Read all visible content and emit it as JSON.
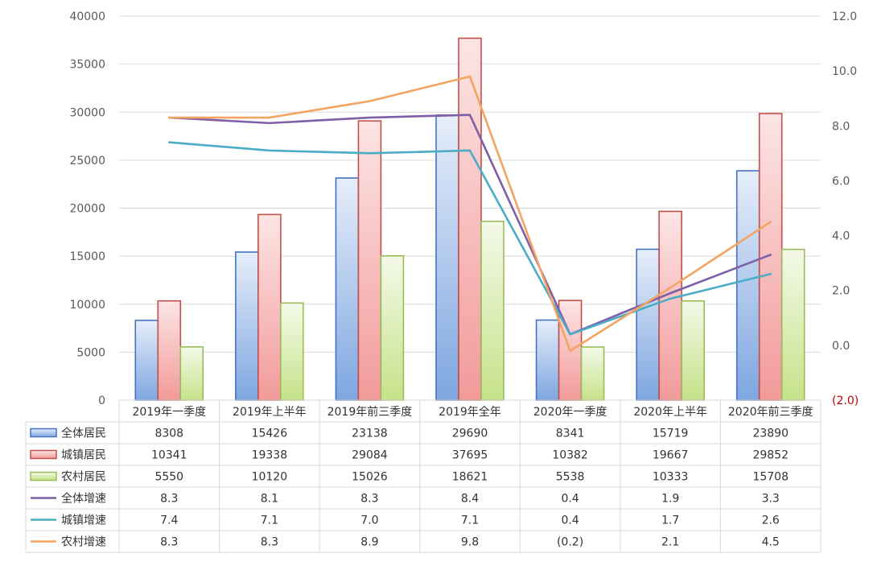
{
  "chart_data": {
    "type": "bar",
    "categories": [
      "2019年一季度",
      "2019年上半年",
      "2019年前三季度",
      "2019年全年",
      "2020年一季度",
      "2020年上半年",
      "2020年前三季度"
    ],
    "y_left": {
      "min": 0,
      "max": 40000,
      "ticks": [
        "0",
        "5000",
        "10000",
        "15000",
        "20000",
        "25000",
        "30000",
        "35000",
        "40000"
      ]
    },
    "y_right": {
      "min": -2.0,
      "max": 12.0,
      "ticks": [
        "(2.0)",
        "0.0",
        "2.0",
        "4.0",
        "6.0",
        "8.0",
        "10.0",
        "12.0"
      ]
    },
    "grid": true,
    "legend": "data-table-bottom",
    "series": [
      {
        "name": "全体居民",
        "kind": "bar",
        "axis": "left",
        "color": "#4472c4",
        "values": [
          8308,
          15426,
          23138,
          29690,
          8341,
          15719,
          23890
        ],
        "labels": [
          "8308",
          "15426",
          "23138",
          "29690",
          "8341",
          "15719",
          "23890"
        ]
      },
      {
        "name": "城镇居民",
        "kind": "bar",
        "axis": "left",
        "color": "#c0504d",
        "values": [
          10341,
          19338,
          29084,
          37695,
          10382,
          19667,
          29852
        ],
        "labels": [
          "10341",
          "19338",
          "29084",
          "37695",
          "10382",
          "19667",
          "29852"
        ]
      },
      {
        "name": "农村居民",
        "kind": "bar",
        "axis": "left",
        "color": "#9bbb59",
        "values": [
          5550,
          10120,
          15026,
          18621,
          5538,
          10333,
          15708
        ],
        "labels": [
          "5550",
          "10120",
          "15026",
          "18621",
          "5538",
          "10333",
          "15708"
        ]
      },
      {
        "name": "全体增速",
        "kind": "line",
        "axis": "right",
        "color": "#7f5fa8",
        "values": [
          8.3,
          8.1,
          8.3,
          8.4,
          0.4,
          1.9,
          3.3
        ],
        "labels": [
          "8.3",
          "8.1",
          "8.3",
          "8.4",
          "0.4",
          "1.9",
          "3.3"
        ]
      },
      {
        "name": "城镇增速",
        "kind": "line",
        "axis": "right",
        "color": "#4bacc6",
        "values": [
          7.4,
          7.1,
          7.0,
          7.1,
          0.4,
          1.7,
          2.6
        ],
        "labels": [
          "7.4",
          "7.1",
          "7.0",
          "7.1",
          "0.4",
          "1.7",
          "2.6"
        ]
      },
      {
        "name": "农村增速",
        "kind": "line",
        "axis": "right",
        "color": "#f4a460",
        "values": [
          8.3,
          8.3,
          8.9,
          9.8,
          -0.2,
          2.1,
          4.5
        ],
        "labels": [
          "8.3",
          "8.3",
          "8.9",
          "9.8",
          "(0.2)",
          "2.1",
          "4.5"
        ]
      }
    ]
  }
}
